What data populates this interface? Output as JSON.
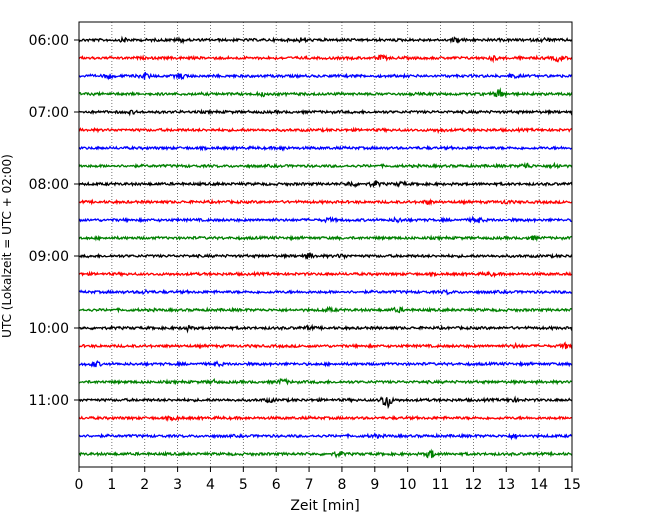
{
  "chart_data": {
    "type": "line",
    "title": "",
    "xlabel": "Zeit  [min]",
    "ylabel": "UTC (Lokalzeit = UTC + 02:00)",
    "xlim": [
      0,
      15
    ],
    "x_ticks": [
      0,
      1,
      2,
      3,
      4,
      5,
      6,
      7,
      8,
      9,
      10,
      11,
      12,
      13,
      14,
      15
    ],
    "y_tick_labels": [
      "06:00",
      "07:00",
      "08:00",
      "09:00",
      "10:00",
      "11:00"
    ],
    "grid": "vertical dotted lines at each minute",
    "line_colors": [
      "#000000",
      "#ff0000",
      "#0000ff",
      "#008000"
    ],
    "series": [
      {
        "start": "06:00",
        "color": "#000000",
        "events": [
          [
            1.4,
            1.0
          ],
          [
            3.1,
            1.0
          ],
          [
            6.8,
            1.2
          ],
          [
            11.5,
            1.5
          ],
          [
            14.2,
            1.0
          ]
        ]
      },
      {
        "start": "06:15",
        "color": "#ff0000",
        "events": [
          [
            9.2,
            1.3
          ],
          [
            12.6,
            1.1
          ],
          [
            14.6,
            2.0
          ]
        ]
      },
      {
        "start": "06:30",
        "color": "#0000ff",
        "events": [
          [
            0.9,
            1.2
          ],
          [
            2.0,
            2.0
          ],
          [
            3.1,
            1.6
          ],
          [
            13.2,
            1.0
          ]
        ]
      },
      {
        "start": "06:45",
        "color": "#008000",
        "events": [
          [
            5.6,
            0.9
          ],
          [
            12.8,
            3.0
          ]
        ]
      },
      {
        "start": "07:00",
        "color": "#000000",
        "events": [
          [
            1.6,
            0.7
          ]
        ]
      },
      {
        "start": "07:15",
        "color": "#ff0000",
        "events": [
          [
            11.0,
            0.9
          ]
        ]
      },
      {
        "start": "07:30",
        "color": "#0000ff",
        "events": [
          [
            6.2,
            0.8
          ]
        ]
      },
      {
        "start": "07:45",
        "color": "#008000",
        "events": [
          [
            13.6,
            1.6
          ],
          [
            14.5,
            1.3
          ]
        ]
      },
      {
        "start": "08:00",
        "color": "#000000",
        "events": [
          [
            8.3,
            1.4
          ],
          [
            9.0,
            1.6
          ],
          [
            9.8,
            1.0
          ]
        ]
      },
      {
        "start": "08:15",
        "color": "#ff0000",
        "events": [
          [
            10.6,
            0.9
          ],
          [
            13.0,
            0.9
          ]
        ]
      },
      {
        "start": "08:30",
        "color": "#0000ff",
        "events": [
          [
            7.6,
            1.0
          ],
          [
            9.7,
            1.2
          ],
          [
            12.1,
            1.8
          ]
        ]
      },
      {
        "start": "08:45",
        "color": "#008000",
        "events": [
          [
            13.8,
            0.9
          ]
        ]
      },
      {
        "start": "09:00",
        "color": "#000000",
        "events": [
          [
            7.0,
            1.6
          ],
          [
            8.0,
            1.0
          ]
        ]
      },
      {
        "start": "09:15",
        "color": "#ff0000",
        "events": [
          [
            12.5,
            1.0
          ]
        ]
      },
      {
        "start": "09:30",
        "color": "#0000ff",
        "events": [
          [
            2.0,
            0.9
          ],
          [
            11.2,
            0.8
          ]
        ]
      },
      {
        "start": "09:45",
        "color": "#008000",
        "events": [
          [
            7.6,
            1.0
          ],
          [
            9.7,
            1.3
          ]
        ]
      },
      {
        "start": "10:00",
        "color": "#000000",
        "events": [
          [
            3.3,
            1.3
          ],
          [
            7.0,
            0.9
          ]
        ]
      },
      {
        "start": "10:15",
        "color": "#ff0000",
        "events": [
          [
            13.3,
            0.9
          ],
          [
            14.8,
            1.4
          ]
        ]
      },
      {
        "start": "10:30",
        "color": "#0000ff",
        "events": [
          [
            0.5,
            1.4
          ],
          [
            4.2,
            0.9
          ]
        ]
      },
      {
        "start": "10:45",
        "color": "#008000",
        "events": [
          [
            6.2,
            1.6
          ],
          [
            4.1,
            0.8
          ]
        ]
      },
      {
        "start": "11:00",
        "color": "#000000",
        "events": [
          [
            9.35,
            5.5
          ],
          [
            5.8,
            0.9
          ],
          [
            13.2,
            1.0
          ]
        ]
      },
      {
        "start": "11:15",
        "color": "#ff0000",
        "events": [
          [
            2.9,
            0.9
          ]
        ]
      },
      {
        "start": "11:30",
        "color": "#0000ff",
        "events": [
          [
            9.0,
            0.9
          ],
          [
            13.2,
            0.9
          ]
        ]
      },
      {
        "start": "11:45",
        "color": "#008000",
        "events": [
          [
            7.9,
            1.4
          ],
          [
            10.7,
            2.4
          ]
        ]
      }
    ]
  }
}
